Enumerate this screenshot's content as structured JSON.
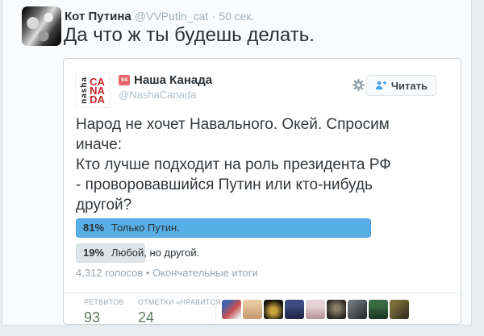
{
  "colors": {
    "page_bg": "#e9edf0",
    "panel_bg": "#f9fbfc",
    "card_border": "#ccd2d7",
    "poll_winner_bar": "#58afe8",
    "poll_loser_bar": "#dee5ea",
    "stat_value_color": "#5e7a64",
    "link_blue": "#3ea1ec"
  },
  "main_tweet": {
    "author": "Кот Путина",
    "handle": "@VVPutin_cat",
    "separator": "·",
    "time": "50 сек.",
    "text": "Да что ж ты будешь делать."
  },
  "quoted_tweet": {
    "logo": {
      "vertical": "nasha",
      "stack": [
        "CA",
        "NA",
        "DA"
      ]
    },
    "badge": "64",
    "author": "Наша Канада",
    "handle": "@NashaCanada",
    "follow_label": "Читать",
    "text_lines": [
      "Народ не хочет Навального. Окей. Спросим",
      "иначе:",
      "Кто лучше подходит на роль президента РФ",
      "- проворовавшийся Путин или кто-нибудь",
      "другой?"
    ],
    "poll": {
      "type": "bar",
      "options": [
        {
          "percent_label": "81%",
          "label": "Только Путин.",
          "value": 81
        },
        {
          "percent_label": "19%",
          "label": "Любой, но другой.",
          "value": 19
        }
      ],
      "summary": "4,312 голосов • Окончательные итоги"
    },
    "stats": {
      "retweets": {
        "label": "РЕТВИТОВ",
        "value": "93"
      },
      "likes": {
        "label": "ОТМЕТКИ «НРАВИТСЯ»",
        "value": "24"
      }
    },
    "liker_avatars": [
      "linear-gradient(135deg,#4a5fa5 25%,#c94f4f 55%,#e8e8e8 90%)",
      "linear-gradient(180deg,#e6c79e 20%,#c99e74 85%)",
      "radial-gradient(circle at 50% 58%,#c9a23a 22%,#17150e 72%)",
      "linear-gradient(180deg,#3d4b7e 30%,#20294a 90%)",
      "linear-gradient(180deg,#e6d2d6 35%,#b4939b 95%)",
      "radial-gradient(circle at 50% 45%,#8a7d6a 18%,#2b2620 75%)",
      "linear-gradient(135deg,#70767a 15%,#2f3336 85%)",
      "linear-gradient(180deg,#3a6b44 30%,#1d3a24 90%)",
      "linear-gradient(135deg,#7a6d3c 25%,#3c3520 85%)"
    ]
  }
}
